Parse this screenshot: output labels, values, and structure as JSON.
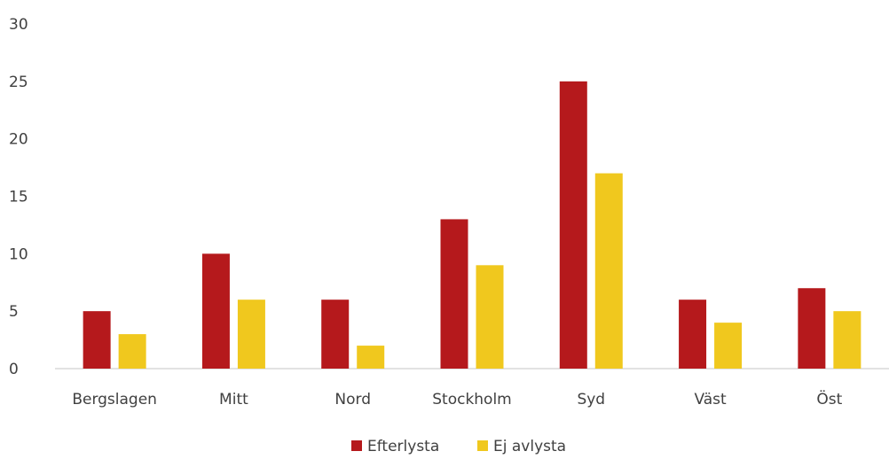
{
  "chart_data": {
    "type": "bar",
    "title": "",
    "xlabel": "",
    "ylabel": "",
    "categories": [
      "Bergslagen",
      "Mitt",
      "Nord",
      "Stockholm",
      "Syd",
      "Väst",
      "Öst"
    ],
    "series": [
      {
        "name": "Efterlysta",
        "color": "#b5191c",
        "values": [
          5,
          10,
          6,
          13,
          25,
          6,
          7
        ]
      },
      {
        "name": "Ej avlysta",
        "color": "#f0c81e",
        "values": [
          3,
          6,
          2,
          9,
          17,
          4,
          5
        ]
      }
    ],
    "ylim": [
      0,
      30
    ],
    "yticks": [
      0,
      5,
      10,
      15,
      20,
      25,
      30
    ],
    "grid": false,
    "legend": "bottom-center"
  }
}
